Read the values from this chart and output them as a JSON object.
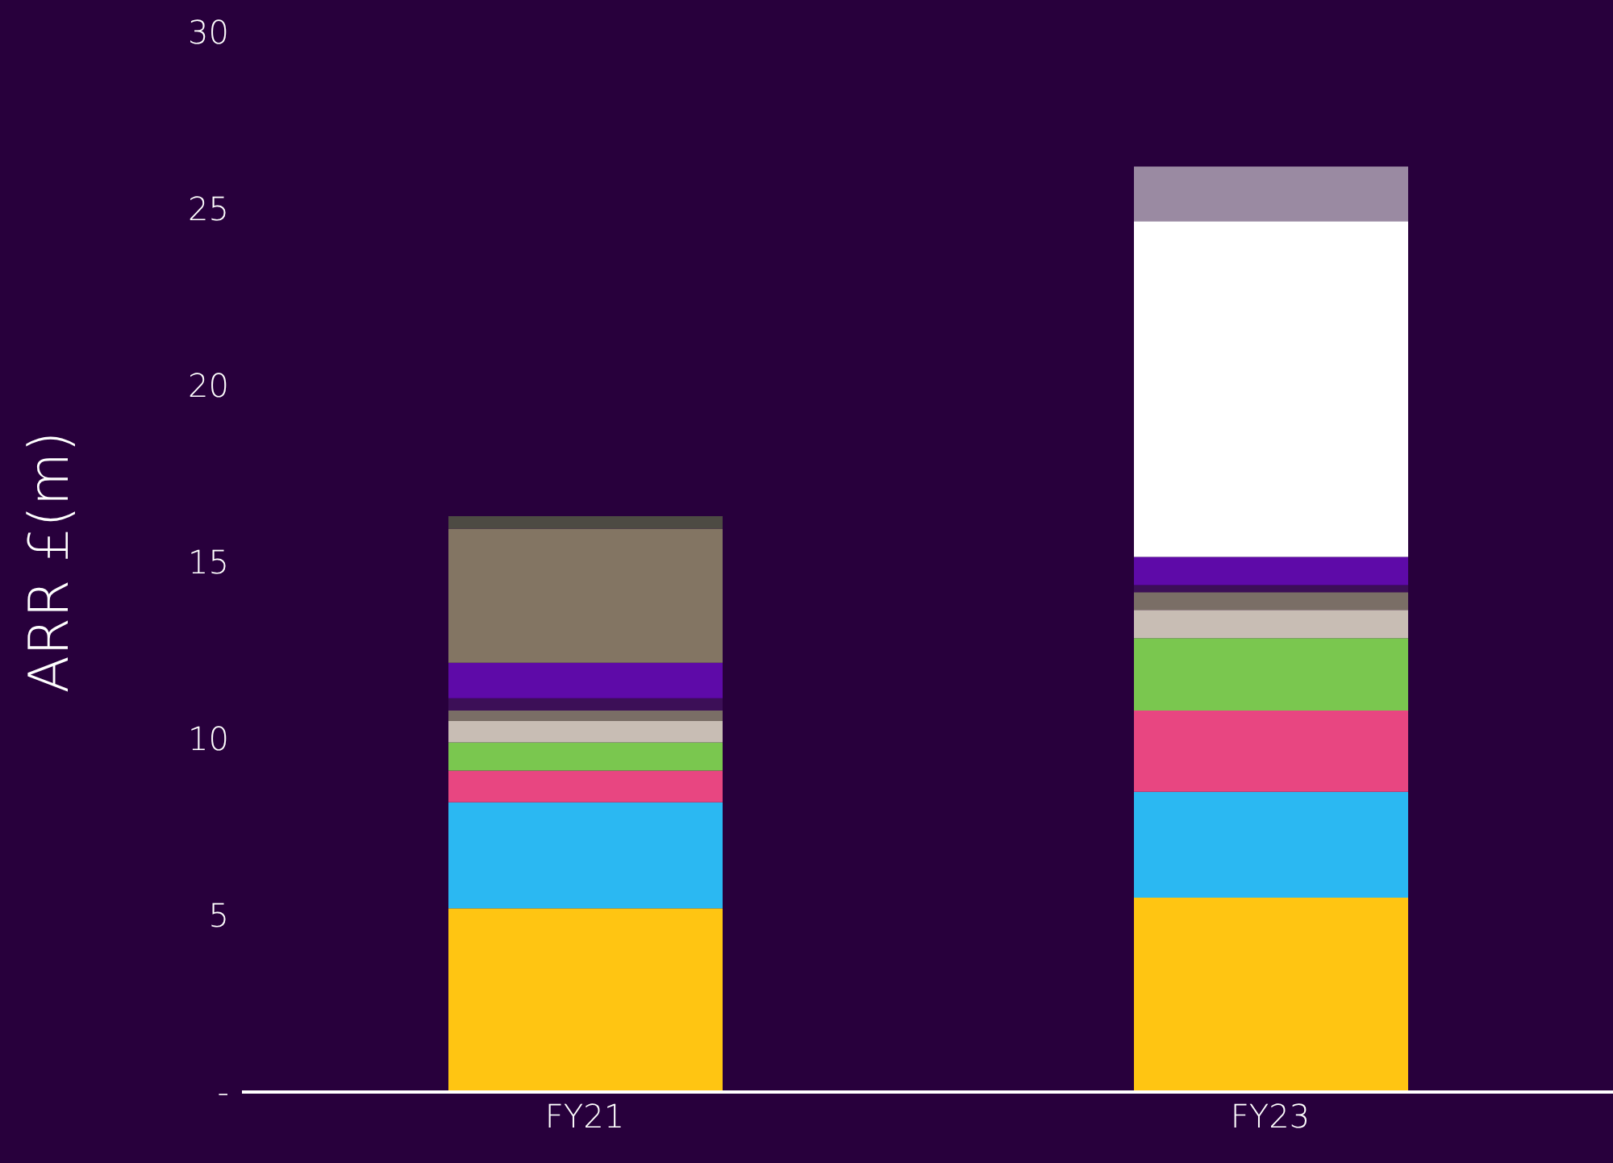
{
  "chart_data": {
    "type": "bar",
    "stacked": true,
    "ylabel": "ARR £(m)",
    "categories": [
      "FY21",
      "FY23"
    ],
    "series": [
      {
        "color": "#ffc512",
        "values": [
          5.2,
          5.5
        ]
      },
      {
        "color": "#2bb8f2",
        "values": [
          3.0,
          3.0
        ]
      },
      {
        "color": "#e84681",
        "values": [
          0.9,
          2.3
        ]
      },
      {
        "color": "#7ac74f",
        "values": [
          0.8,
          2.05
        ]
      },
      {
        "color": "#c8bdb4",
        "values": [
          0.6,
          0.8
        ]
      },
      {
        "color": "#7a6e66",
        "values": [
          0.3,
          0.5
        ]
      },
      {
        "color": "#3c0f57",
        "values": [
          0.35,
          0.2
        ]
      },
      {
        "color": "#5e0aa8",
        "values": [
          1.0,
          0.8
        ]
      },
      {
        "color": "#837563",
        "values": [
          3.8,
          0
        ]
      },
      {
        "color": "#4d4a43",
        "values": [
          0.35,
          0
        ]
      },
      {
        "color": "#ffffff",
        "values": [
          0,
          9.5
        ]
      },
      {
        "color": "#9a8aa2",
        "values": [
          0,
          1.55
        ]
      }
    ],
    "ylim": [
      0,
      30
    ],
    "yticks": [
      {
        "value": 0,
        "label": "-"
      },
      5,
      10,
      15,
      20,
      25,
      30
    ],
    "grid": false,
    "legend": false
  }
}
